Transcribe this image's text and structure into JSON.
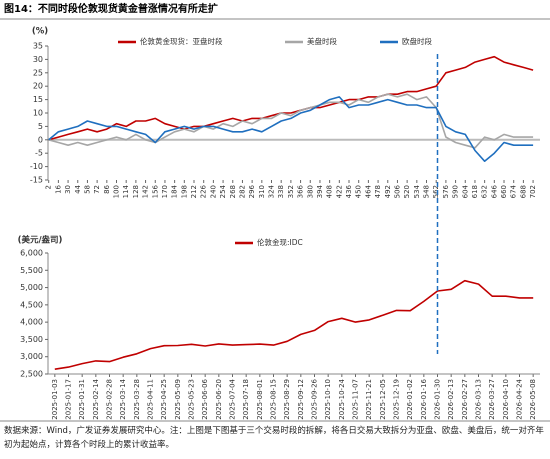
{
  "title": "图14：不同时段伦敦现货黄金普涨情况有所走扩",
  "chart_data": [
    {
      "type": "line",
      "y_label": "(%)",
      "x": [
        2,
        16,
        30,
        44,
        58,
        72,
        86,
        100,
        114,
        128,
        142,
        156,
        170,
        184,
        198,
        212,
        226,
        240,
        254,
        268,
        282,
        296,
        310,
        324,
        338,
        352,
        366,
        380,
        394,
        408,
        422,
        436,
        450,
        464,
        478,
        492,
        506,
        520,
        534,
        548,
        562,
        576,
        590,
        604,
        618,
        632,
        646,
        660,
        674,
        688,
        702
      ],
      "xlim": [
        1,
        712
      ],
      "xticks": [
        2,
        16,
        30,
        44,
        58,
        72,
        86,
        100,
        114,
        128,
        142,
        156,
        170,
        184,
        198,
        212,
        226,
        240,
        254,
        268,
        282,
        296,
        310,
        324,
        338,
        352,
        366,
        380,
        394,
        408,
        422,
        436,
        450,
        464,
        478,
        492,
        506,
        520,
        534,
        548,
        562,
        576,
        590,
        604,
        618,
        632,
        646,
        660,
        674,
        688,
        702
      ],
      "ylim": [
        -15,
        35
      ],
      "yticks": [
        -15,
        -10,
        -5,
        0,
        5,
        10,
        15,
        20,
        25,
        30,
        35
      ],
      "series": [
        {
          "name": "伦敦黄金现货：亚盘时段",
          "color": "#c00000",
          "values": [
            0,
            1,
            2,
            3,
            4,
            3,
            4,
            6,
            5,
            7,
            7,
            8,
            6,
            5,
            4,
            5,
            5,
            6,
            7,
            8,
            7,
            8,
            8,
            9,
            10,
            10,
            11,
            12,
            12,
            13,
            14,
            15,
            15,
            16,
            16,
            17,
            17,
            18,
            18,
            19,
            20,
            25,
            26,
            27,
            29,
            30,
            31,
            29,
            28,
            27,
            26
          ]
        },
        {
          "name": "美盘时段",
          "color": "#a6a6a6",
          "values": [
            0,
            -1,
            -2,
            -1,
            -2,
            -1,
            0,
            1,
            0,
            2,
            0,
            -1,
            1,
            3,
            4,
            3,
            5,
            4,
            6,
            5,
            7,
            6,
            8,
            8,
            10,
            9,
            11,
            12,
            13,
            14,
            14,
            13,
            15,
            14,
            16,
            17,
            16,
            17,
            15,
            16,
            12,
            1,
            -1,
            -2,
            -3,
            1,
            0,
            2,
            1,
            1,
            1
          ]
        },
        {
          "name": "欧盘时段",
          "color": "#1f6fbf",
          "values": [
            0,
            3,
            4,
            5,
            7,
            6,
            5,
            5,
            4,
            3,
            2,
            -1,
            3,
            4,
            5,
            4,
            5,
            5,
            4,
            3,
            3,
            4,
            3,
            5,
            7,
            8,
            10,
            11,
            13,
            15,
            16,
            12,
            13,
            13,
            14,
            15,
            14,
            13,
            13,
            12,
            12,
            5,
            3,
            2,
            -4,
            -8,
            -5,
            -1,
            -2,
            -2,
            -2
          ]
        }
      ]
    },
    {
      "type": "line",
      "y_label": "(美元/盎司)",
      "categories": [
        "2025-01-03",
        "2025-01-17",
        "2025-01-31",
        "2025-02-14",
        "2025-02-28",
        "2025-03-14",
        "2025-03-28",
        "2025-04-11",
        "2025-04-25",
        "2025-05-09",
        "2025-05-23",
        "2025-06-06",
        "2025-06-20",
        "2025-07-04",
        "2025-07-18",
        "2025-08-01",
        "2025-08-15",
        "2025-08-29",
        "2025-09-12",
        "2025-09-26",
        "2025-10-10",
        "2025-10-24",
        "2025-11-07",
        "2025-11-21",
        "2025-12-05",
        "2025-12-19",
        "2026-01-02",
        "2026-01-16",
        "2026-01-30",
        "2026-02-13",
        "2026-02-27",
        "2026-03-13",
        "2026-03-27",
        "2026-04-10",
        "2026-04-24",
        "2026-05-08"
      ],
      "ylim": [
        2500,
        6000
      ],
      "yticks": [
        {
          "value": 2500,
          "label": "2,500"
        },
        {
          "value": 3000,
          "label": "3,000"
        },
        {
          "value": 3500,
          "label": "3,500"
        },
        {
          "value": 4000,
          "label": "4,000"
        },
        {
          "value": 4500,
          "label": "4,500"
        },
        {
          "value": 5000,
          "label": "5,000"
        },
        {
          "value": 5500,
          "label": "5,500"
        },
        {
          "value": 6000,
          "label": "6,000"
        }
      ],
      "series": [
        {
          "name": "伦敦金现:IDC",
          "color": "#c00000",
          "values": [
            2640,
            2700,
            2800,
            2880,
            2860,
            2985,
            3085,
            3235,
            3320,
            3325,
            3360,
            3310,
            3370,
            3335,
            3350,
            3365,
            3335,
            3445,
            3645,
            3760,
            4015,
            4110,
            4000,
            4065,
            4200,
            4340,
            4330,
            4600,
            4900,
            4950,
            5200,
            5100,
            4750,
            4750,
            4700,
            4700
          ]
        }
      ]
    }
  ],
  "notes": {
    "source": "数据来源：Wind，广发证券发展研究中心。注：上图是下图基于三个交易时段的拆解，将各日交易大致拆分为亚盘、欧盘、美盘后，统一对齐年初为起始点，计算各个时段上的累计收益率。"
  }
}
